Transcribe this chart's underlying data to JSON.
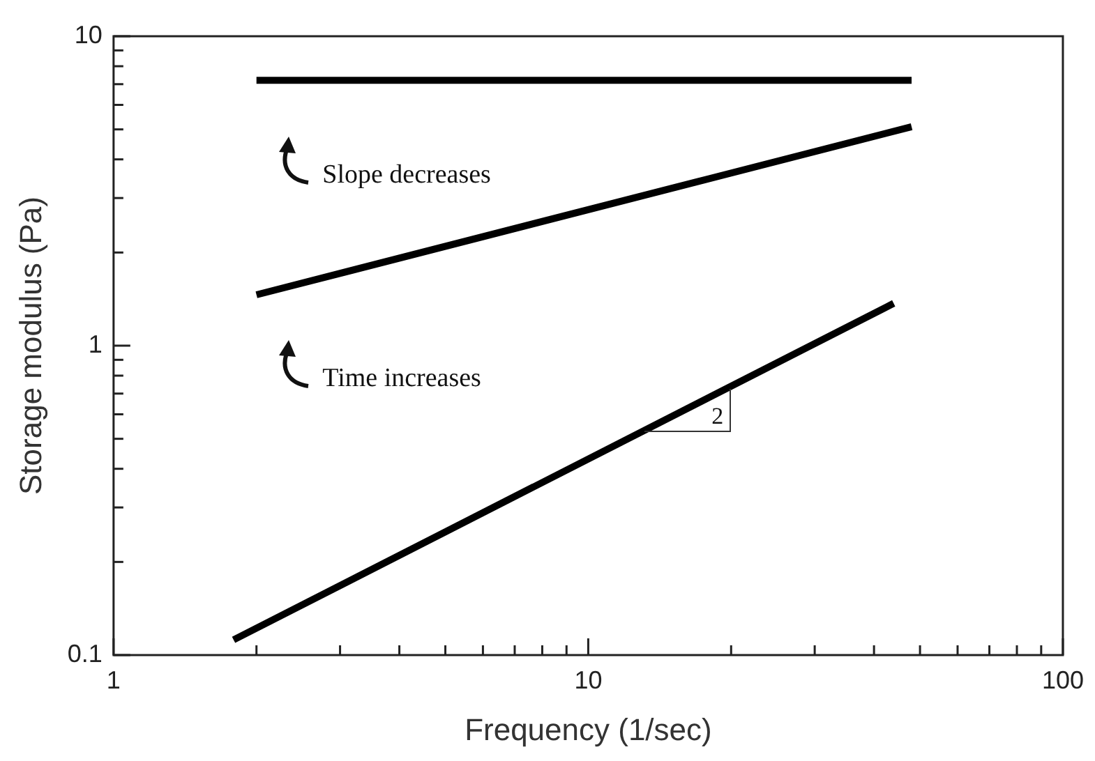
{
  "chart_data": {
    "type": "line",
    "xlabel": "Frequency (1/sec)",
    "ylabel": "Storage modulus (Pa)",
    "log": "xy",
    "xlim": [
      1,
      100
    ],
    "ylim": [
      0.1,
      10
    ],
    "xticks": [
      1,
      {
        "value": 2,
        "label": null
      },
      {
        "value": 3,
        "label": null
      },
      {
        "value": 4,
        "label": null
      },
      {
        "value": 5,
        "label": null
      },
      {
        "value": 6,
        "label": null
      },
      {
        "value": 7,
        "label": null
      },
      {
        "value": 8,
        "label": null
      },
      {
        "value": 9,
        "label": null
      },
      10,
      {
        "value": 20,
        "label": null
      },
      {
        "value": 30,
        "label": null
      },
      {
        "value": 40,
        "label": null
      },
      {
        "value": 50,
        "label": null
      },
      {
        "value": 60,
        "label": null
      },
      {
        "value": 70,
        "label": null
      },
      {
        "value": 80,
        "label": null
      },
      {
        "value": 90,
        "label": null
      },
      100
    ],
    "yticks": [
      0.1,
      {
        "value": 0.2,
        "label": null
      },
      {
        "value": 0.3,
        "label": null
      },
      {
        "value": 0.4,
        "label": null
      },
      {
        "value": 0.5,
        "label": null
      },
      {
        "value": 0.6,
        "label": null
      },
      {
        "value": 0.7,
        "label": null
      },
      {
        "value": 0.8,
        "label": null
      },
      {
        "value": 0.9,
        "label": null
      },
      1,
      {
        "value": 2,
        "label": null
      },
      {
        "value": 3,
        "label": null
      },
      {
        "value": 4,
        "label": null
      },
      {
        "value": 5,
        "label": null
      },
      {
        "value": 6,
        "label": null
      },
      {
        "value": 7,
        "label": null
      },
      {
        "value": 8,
        "label": null
      },
      {
        "value": 9,
        "label": null
      },
      10
    ],
    "grid": false,
    "legend": false,
    "marker": "none",
    "line_style": "solid",
    "series": [
      {
        "color": "#000000",
        "x": [
          2,
          48
        ],
        "values": [
          7.2,
          7.2
        ]
      },
      {
        "color": "#000000",
        "x": [
          2,
          48
        ],
        "values": [
          1.46,
          5.1
        ]
      },
      {
        "color": "#000000",
        "x": [
          1.79,
          44
        ],
        "values": [
          0.112,
          1.37
        ]
      }
    ],
    "annotations": [
      "Slope decreases",
      "Time increases",
      {
        "text": "2",
        "x": 13.1,
        "y": 0.53
      }
    ]
  }
}
